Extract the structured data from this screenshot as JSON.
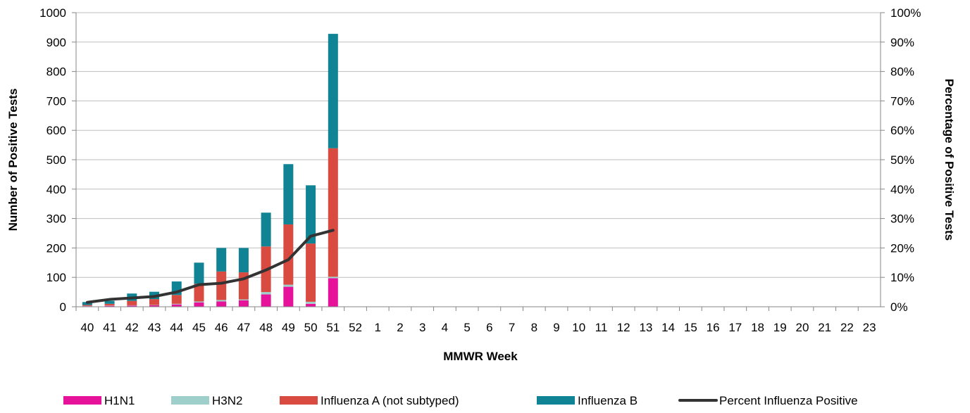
{
  "chart_data": {
    "type": "bar",
    "stacked": true,
    "title": "",
    "xlabel": "MMWR Week",
    "ylabel": "Number of Positive Tests",
    "y2label": "Percentage of Positive Tests",
    "ylim": [
      0,
      1000
    ],
    "y2lim": [
      0,
      100
    ],
    "y_ticks": [
      "0",
      "100",
      "200",
      "300",
      "400",
      "500",
      "600",
      "700",
      "800",
      "900",
      "1000"
    ],
    "y2_ticks": [
      "0%",
      "10%",
      "20%",
      "30%",
      "40%",
      "50%",
      "60%",
      "70%",
      "80%",
      "90%",
      "100%"
    ],
    "categories": [
      "40",
      "41",
      "42",
      "43",
      "44",
      "45",
      "46",
      "47",
      "48",
      "49",
      "50",
      "51",
      "52",
      "1",
      "2",
      "3",
      "4",
      "5",
      "6",
      "7",
      "8",
      "9",
      "10",
      "11",
      "12",
      "13",
      "14",
      "15",
      "16",
      "17",
      "18",
      "19",
      "20",
      "21",
      "22",
      "23"
    ],
    "series": [
      {
        "name": "H1N1",
        "color": "#e6139a",
        "values": [
          2,
          3,
          4,
          5,
          8,
          15,
          18,
          22,
          42,
          68,
          10,
          97,
          null,
          null,
          null,
          null,
          null,
          null,
          null,
          null,
          null,
          null,
          null,
          null,
          null,
          null,
          null,
          null,
          null,
          null,
          null,
          null,
          null,
          null,
          null,
          null
        ]
      },
      {
        "name": "H3N2",
        "color": "#9ecfcb",
        "values": [
          1,
          1,
          1,
          1,
          2,
          3,
          5,
          3,
          8,
          7,
          7,
          5,
          null,
          null,
          null,
          null,
          null,
          null,
          null,
          null,
          null,
          null,
          null,
          null,
          null,
          null,
          null,
          null,
          null,
          null,
          null,
          null,
          null,
          null,
          null,
          null
        ]
      },
      {
        "name": "Influenza A (not subtyped)",
        "color": "#d94a40",
        "values": [
          3,
          6,
          15,
          20,
          30,
          60,
          97,
          92,
          155,
          205,
          198,
          437,
          null,
          null,
          null,
          null,
          null,
          null,
          null,
          null,
          null,
          null,
          null,
          null,
          null,
          null,
          null,
          null,
          null,
          null,
          null,
          null,
          null,
          null,
          null,
          null
        ]
      },
      {
        "name": "Influenza B",
        "color": "#108494",
        "values": [
          10,
          10,
          25,
          25,
          46,
          72,
          80,
          83,
          115,
          205,
          198,
          389,
          null,
          null,
          null,
          null,
          null,
          null,
          null,
          null,
          null,
          null,
          null,
          null,
          null,
          null,
          null,
          null,
          null,
          null,
          null,
          null,
          null,
          null,
          null,
          null
        ]
      },
      {
        "name": "Percent Influenza Positive",
        "type": "line",
        "axis": "right",
        "color": "#333333",
        "values": [
          1.5,
          2.5,
          3.0,
          3.5,
          5.0,
          7.5,
          8.0,
          9.5,
          12.5,
          16.0,
          24.0,
          26.0,
          null,
          null,
          null,
          null,
          null,
          null,
          null,
          null,
          null,
          null,
          null,
          null,
          null,
          null,
          null,
          null,
          null,
          null,
          null,
          null,
          null,
          null,
          null,
          null
        ]
      }
    ],
    "grid": true,
    "legend_position": "bottom"
  }
}
